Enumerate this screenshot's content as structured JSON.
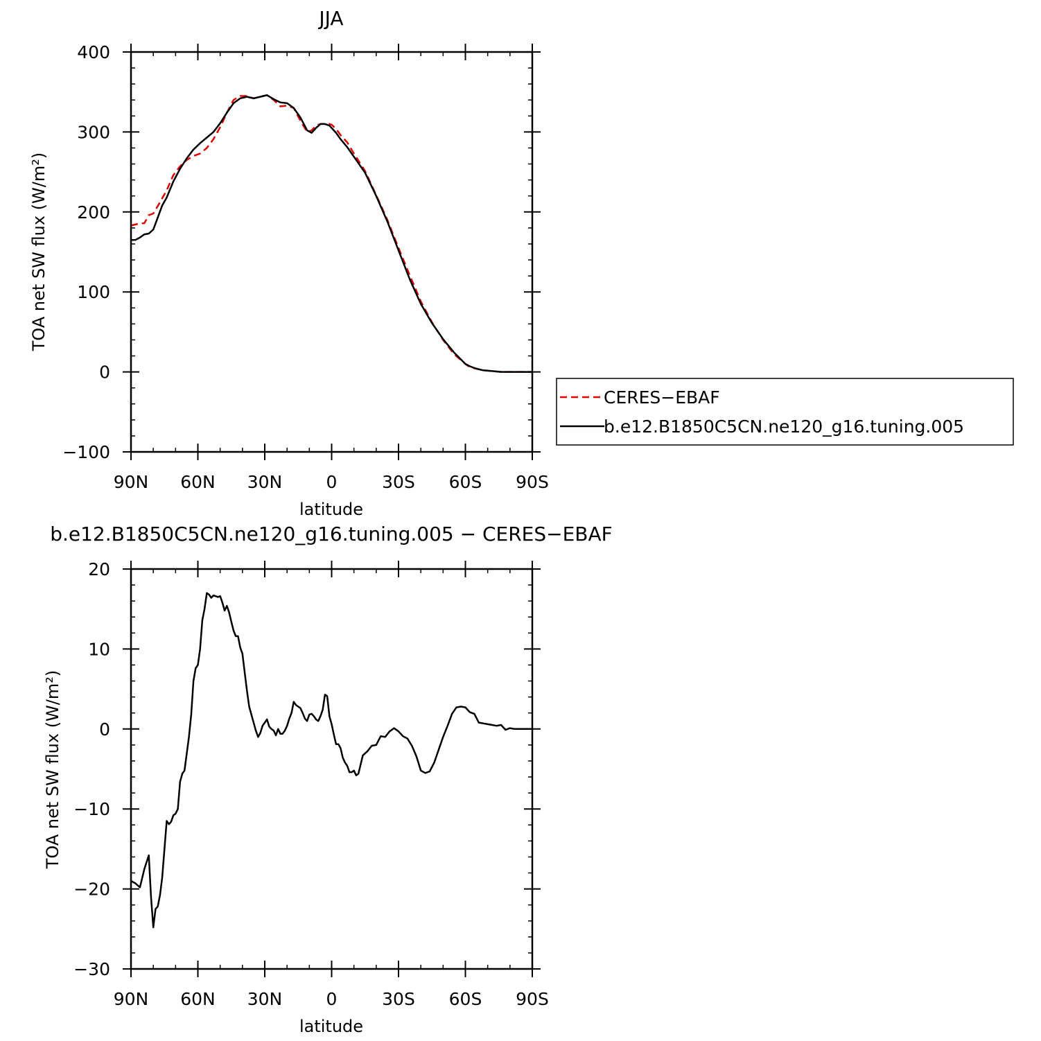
{
  "chart_data": [
    {
      "type": "line",
      "title": "JJA",
      "xlabel": "latitude",
      "ylabel": "TOA net SW flux (W/m²)",
      "xlim": [
        90,
        -90
      ],
      "ylim": [
        -100,
        400
      ],
      "xticks": [
        90,
        60,
        30,
        0,
        -30,
        -60,
        -90
      ],
      "xtick_labels": [
        "90N",
        "60N",
        "30N",
        "0",
        "30S",
        "60S",
        "90S"
      ],
      "yticks": [
        -100,
        0,
        100,
        200,
        300,
        400
      ],
      "ytick_labels": [
        "−100",
        "0",
        "100",
        "200",
        "300",
        "400"
      ],
      "grid": false,
      "legend": "right",
      "series": [
        {
          "name": "CERES−EBAF",
          "color": "#e00000",
          "dash": "dashed",
          "x": [
            90,
            87,
            84,
            82,
            80,
            77,
            74,
            71,
            68,
            65,
            62,
            59,
            56,
            53,
            50,
            47,
            44,
            41,
            38,
            35,
            32,
            29,
            26,
            23,
            20,
            17,
            14,
            11,
            9,
            7,
            5,
            3,
            1,
            0,
            -2,
            -4,
            -7,
            -10,
            -15,
            -20,
            -25,
            -30,
            -35,
            -40,
            -45,
            -50,
            -55,
            -60,
            -62,
            -65,
            -68,
            -72,
            -76,
            -80,
            -85,
            -90
          ],
          "y": [
            183,
            185,
            186,
            196,
            198,
            212,
            227,
            246,
            257,
            265,
            270,
            273,
            280,
            291,
            306,
            324,
            340,
            345,
            345,
            342,
            344,
            346,
            340,
            332,
            333,
            330,
            314,
            300,
            302,
            308,
            310,
            310,
            310,
            309,
            304,
            296,
            287,
            273,
            251,
            221,
            190,
            155,
            121,
            88,
            62,
            40,
            22,
            10,
            6,
            4,
            2,
            1,
            0,
            0,
            0,
            0
          ]
        },
        {
          "name": "b.e12.B1850C5CN.ne120_g16.tuning.005",
          "color": "#000000",
          "dash": "solid",
          "x": [
            90,
            88,
            86,
            84,
            82,
            80,
            78,
            76,
            74,
            71,
            68,
            65,
            62,
            59,
            56,
            53,
            50,
            47,
            44,
            41,
            38,
            35,
            32,
            29,
            26,
            23,
            20,
            17,
            14,
            11,
            9,
            7,
            5,
            3,
            1,
            0,
            -2,
            -4,
            -7,
            -10,
            -15,
            -20,
            -25,
            -30,
            -35,
            -40,
            -45,
            -50,
            -55,
            -60,
            -62,
            -65,
            -68,
            -72,
            -76,
            -80,
            -85,
            -90
          ],
          "y": [
            165,
            165,
            168,
            172,
            173,
            178,
            193,
            208,
            218,
            238,
            254,
            267,
            278,
            286,
            293,
            300,
            311,
            324,
            336,
            342,
            344,
            342,
            344,
            346,
            341,
            337,
            336,
            330,
            318,
            302,
            299,
            305,
            310,
            310,
            308,
            305,
            299,
            291,
            281,
            269,
            249,
            220,
            188,
            152,
            116,
            85,
            61,
            41,
            24,
            10,
            7,
            4,
            2,
            1,
            0,
            0,
            0,
            0
          ]
        }
      ]
    },
    {
      "type": "line",
      "title": "b.e12.B1850C5CN.ne120_g16.tuning.005 − CERES−EBAF",
      "xlabel": "latitude",
      "ylabel": "TOA net SW flux (W/m²)",
      "xlim": [
        90,
        -90
      ],
      "ylim": [
        -30,
        20
      ],
      "xticks": [
        90,
        60,
        30,
        0,
        -30,
        -60,
        -90
      ],
      "xtick_labels": [
        "90N",
        "60N",
        "30N",
        "0",
        "30S",
        "60S",
        "90S"
      ],
      "yticks": [
        -30,
        -20,
        -10,
        0,
        10,
        20
      ],
      "ytick_labels": [
        "−30",
        "−20",
        "−10",
        "0",
        "10",
        "20"
      ],
      "grid": false,
      "series": [
        {
          "color": "#000000",
          "dash": "solid",
          "x": [
            90,
            88,
            86,
            84,
            82,
            81,
            80,
            79,
            78,
            77,
            76,
            75,
            74,
            73,
            72,
            71,
            70,
            69,
            68,
            67,
            66,
            65,
            64,
            63,
            62,
            61,
            60,
            59,
            58,
            57,
            56,
            55,
            54,
            53,
            52,
            51,
            50,
            49,
            48,
            47,
            46,
            45,
            44,
            43,
            42,
            41,
            40,
            39,
            38,
            37,
            36,
            35,
            34,
            33,
            32,
            31,
            30,
            29,
            28,
            27,
            26,
            25,
            24,
            23,
            22,
            21,
            20,
            19,
            18,
            17,
            16,
            15,
            14,
            13,
            12,
            11,
            10,
            9,
            8,
            7,
            6,
            5,
            4,
            3,
            2,
            1,
            0,
            -1,
            -2,
            -3,
            -4,
            -5,
            -6,
            -7,
            -8,
            -9,
            -10,
            -11,
            -12,
            -14,
            -16,
            -18,
            -20,
            -22,
            -24,
            -26,
            -28,
            -30,
            -32,
            -34,
            -36,
            -38,
            -40,
            -42,
            -44,
            -46,
            -48,
            -50,
            -52,
            -54,
            -56,
            -58,
            -60,
            -62,
            -64,
            -66,
            -68,
            -70,
            -72,
            -74,
            -76,
            -78,
            -80,
            -82,
            -84,
            -86,
            -88,
            -90
          ],
          "y": [
            -19.0,
            -19.3,
            -19.8,
            -17.5,
            -15.8,
            -21.0,
            -24.8,
            -22.5,
            -22.2,
            -20.8,
            -18.6,
            -15.0,
            -11.5,
            -11.9,
            -11.6,
            -10.8,
            -10.6,
            -10.0,
            -6.6,
            -5.6,
            -5.2,
            -3.1,
            -1.0,
            1.8,
            6.0,
            7.6,
            8.0,
            10.0,
            13.6,
            15.0,
            17.0,
            16.8,
            16.4,
            16.7,
            16.6,
            16.5,
            16.6,
            15.8,
            14.8,
            15.4,
            14.6,
            13.4,
            12.3,
            11.6,
            11.6,
            10.2,
            9.4,
            7.1,
            4.8,
            2.8,
            1.8,
            0.8,
            -0.2,
            -1.0,
            -0.5,
            0.4,
            0.8,
            1.2,
            0.3,
            0.0,
            -0.2,
            -0.8,
            0.0,
            -0.6,
            -0.6,
            -0.2,
            0.4,
            1.3,
            2.0,
            3.4,
            3.0,
            2.8,
            2.6,
            2.0,
            1.3,
            1.0,
            1.8,
            1.9,
            1.6,
            1.2,
            1.0,
            1.6,
            2.4,
            4.3,
            4.1,
            1.6,
            0.6,
            -0.7,
            -1.9,
            -1.9,
            -2.4,
            -3.6,
            -4.2,
            -4.6,
            -5.4,
            -5.4,
            -5.2,
            -5.8,
            -5.6,
            -3.3,
            -2.8,
            -2.1,
            -2.0,
            -0.9,
            -1.0,
            -0.3,
            0.1,
            -0.3,
            -0.9,
            -1.2,
            -2.1,
            -3.4,
            -5.2,
            -5.5,
            -5.3,
            -4.2,
            -2.6,
            -1.0,
            0.4,
            1.9,
            2.7,
            2.8,
            2.7,
            2.1,
            1.9,
            0.8,
            0.7,
            0.6,
            0.5,
            0.4,
            0.5,
            -0.1,
            0.1,
            0.0,
            0.0,
            0.0,
            0.0,
            0.0
          ]
        }
      ]
    }
  ]
}
